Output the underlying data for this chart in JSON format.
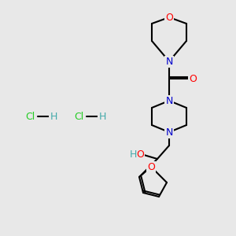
{
  "bg_color": "#e8e8e8",
  "bond_color": "#000000",
  "bond_width": 1.5,
  "atom_colors": {
    "O": "#ff0000",
    "N": "#0000cc",
    "C": "#000000",
    "H": "#44aaaa",
    "Cl": "#22cc22"
  },
  "figsize": [
    3.0,
    3.0
  ],
  "dpi": 100
}
